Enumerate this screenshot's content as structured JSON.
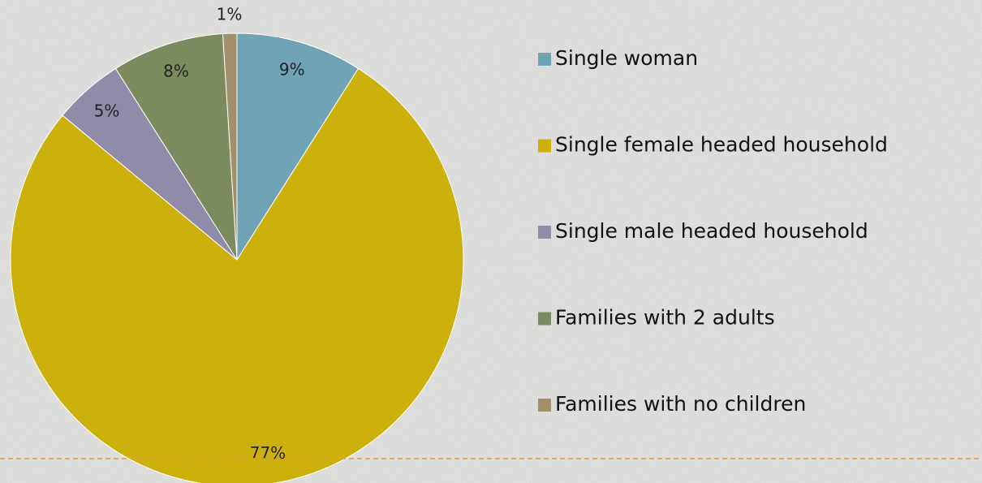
{
  "chart_data": {
    "type": "pie",
    "categories": [
      "Single woman",
      "Single female headed household",
      "Single male headed household",
      "Families with 2 adults",
      "Families with no children"
    ],
    "values": [
      9,
      77,
      5,
      8,
      1
    ],
    "value_labels": [
      "9%",
      "77%",
      "5%",
      "8%",
      "1%"
    ],
    "colors": [
      "#6fa3b5",
      "#ccb00c",
      "#8f8ba8",
      "#7b8b5e",
      "#a28f6c"
    ],
    "legend": "right"
  }
}
